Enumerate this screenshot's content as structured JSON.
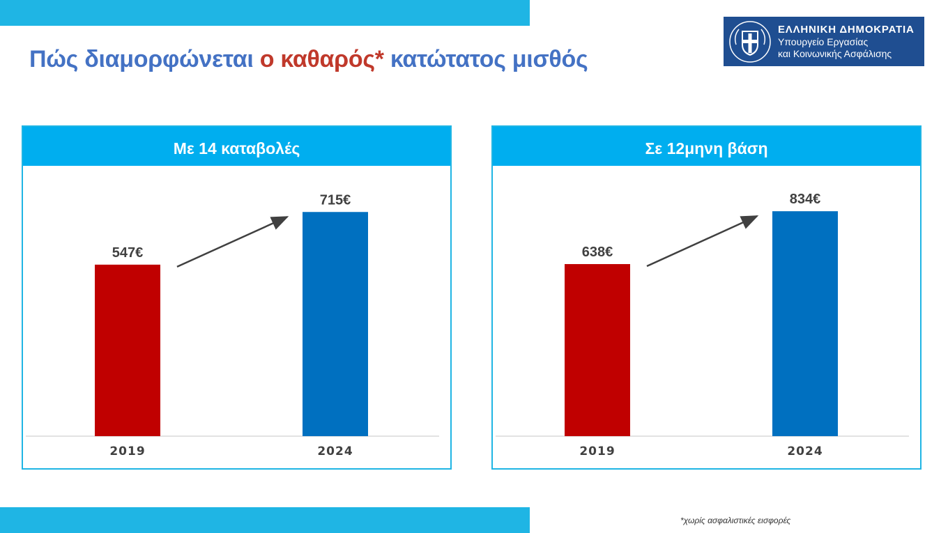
{
  "title": {
    "part1": "Πώς διαμορφώνεται",
    "part2": "ο καθαρός*",
    "part3": "κατώτατος μισθός"
  },
  "logo": {
    "line1": "ΕΛΛΗΝΙΚΗ ΔΗΜΟΚΡΑΤΙΑ",
    "line2": "Υπουργείο Εργασίας",
    "line3": "και Κοινωνικής Ασφάλισης"
  },
  "colors": {
    "band": "#1fb5e4",
    "header": "#00aeef",
    "bar_2019": "#c00000",
    "bar_2024": "#0070c0",
    "title_blue": "#4472c4",
    "title_red": "#c0392b"
  },
  "chart_data": [
    {
      "type": "bar",
      "title": "Με 14 καταβολές",
      "categories": [
        "2019",
        "2024"
      ],
      "values": [
        547,
        715
      ],
      "labels": [
        "547€",
        "715€"
      ],
      "colors": [
        "#c00000",
        "#0070c0"
      ],
      "ylim": [
        0,
        800
      ],
      "arrow": true
    },
    {
      "type": "bar",
      "title": "Σε 12μηνη βάση",
      "categories": [
        "2019",
        "2024"
      ],
      "values": [
        638,
        834
      ],
      "labels": [
        "638€",
        "834€"
      ],
      "colors": [
        "#c00000",
        "#0070c0"
      ],
      "ylim": [
        0,
        930
      ],
      "arrow": true
    }
  ],
  "footnote": "*χωρίς ασφαλιστικές εισφορές"
}
